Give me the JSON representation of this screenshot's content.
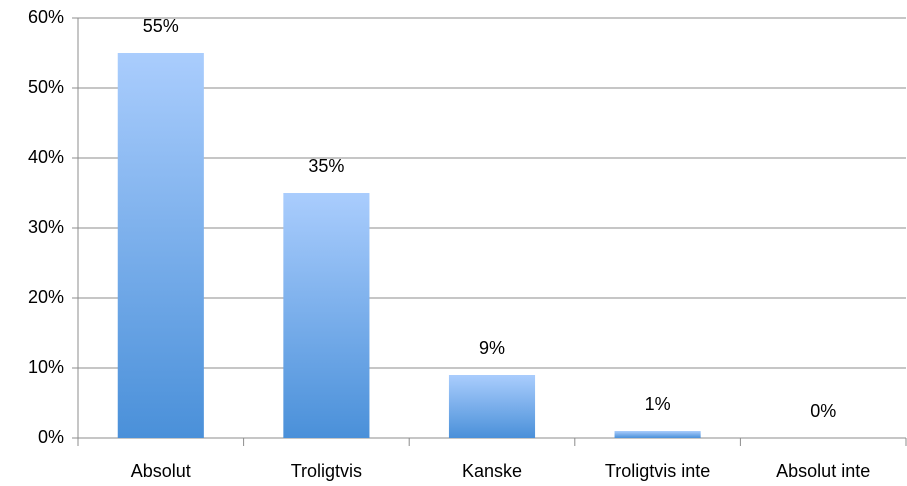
{
  "chart_data": {
    "type": "bar",
    "categories": [
      "Absolut",
      "Troligtvis",
      "Kanske",
      "Troligtvis inte",
      "Absolut inte"
    ],
    "values": [
      55,
      35,
      9,
      1,
      0
    ],
    "value_labels": [
      "55%",
      "35%",
      "9%",
      "1%",
      "0%"
    ],
    "color": "#4a90d9",
    "ylim": [
      0,
      60
    ],
    "yticks": [
      {
        "value": 0,
        "label": "0%"
      },
      {
        "value": 10,
        "label": "10%"
      },
      {
        "value": 20,
        "label": "20%"
      },
      {
        "value": 30,
        "label": "30%"
      },
      {
        "value": 40,
        "label": "40%"
      },
      {
        "value": 50,
        "label": "50%"
      },
      {
        "value": 60,
        "label": "60%"
      }
    ],
    "grid": true
  }
}
